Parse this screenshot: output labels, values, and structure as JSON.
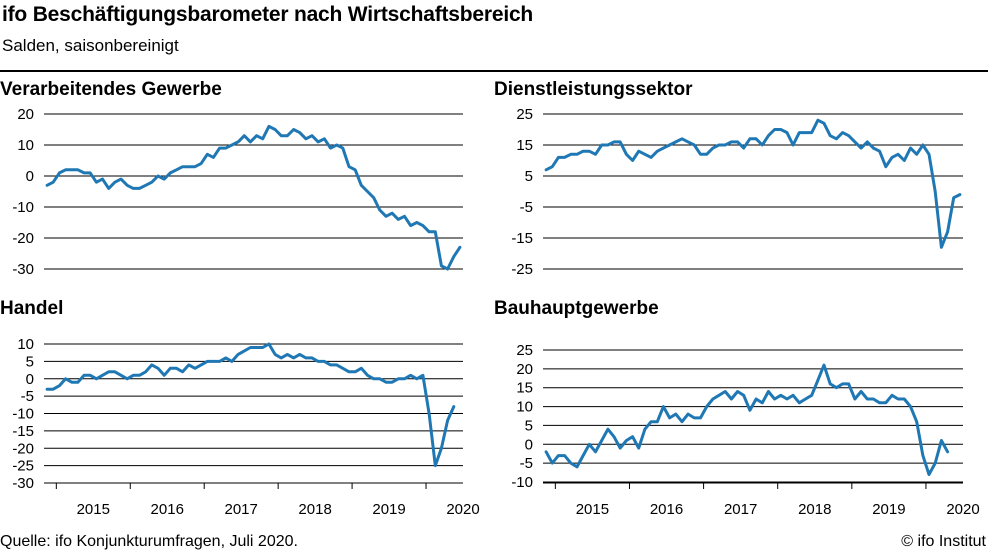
{
  "title": "ifo Beschäftigungsbarometer nach Wirtschaftsbereich",
  "subtitle": "Salden, saisonbereinigt",
  "source": "Quelle: ifo Konjunkturumfragen, Juli 2020.",
  "copyright": "© ifo Institut",
  "colors": {
    "line": "#1f78b4",
    "grid": "#000000"
  },
  "chart_data": [
    {
      "type": "line",
      "title": "Verarbeitendes Gewerbe",
      "x_labels": [
        "2015",
        "2016",
        "2017",
        "2018",
        "2019",
        "2020"
      ],
      "ylim": [
        -30,
        20
      ],
      "y_ticks": [
        20,
        10,
        0,
        -10,
        -20,
        -30
      ],
      "x_start": "2014-11",
      "series": [
        {
          "values": [
            -3,
            -2,
            1,
            2,
            2,
            2,
            1,
            1,
            -2,
            -1,
            -4,
            -2,
            -1,
            -3,
            -4,
            -4,
            -3,
            -2,
            0,
            -1,
            1,
            2,
            3,
            3,
            3,
            4,
            7,
            6,
            9,
            9,
            10,
            11,
            13,
            11,
            13,
            12,
            16,
            15,
            13,
            13,
            15,
            14,
            12,
            13,
            11,
            12,
            9,
            10,
            9,
            3,
            2,
            -3,
            -5,
            -7,
            -11,
            -13,
            -12,
            -14,
            -13,
            -16,
            -15,
            -16,
            -18,
            -18,
            -29,
            -30,
            -26,
            -23
          ]
        }
      ]
    },
    {
      "type": "line",
      "title": "Dienstleistungssektor",
      "x_labels": [
        "2015",
        "2016",
        "2017",
        "2018",
        "2019",
        "2020"
      ],
      "ylim": [
        -25,
        25
      ],
      "y_ticks": [
        25,
        15,
        5,
        -5,
        -15,
        -25
      ],
      "x_start": "2014-11",
      "series": [
        {
          "values": [
            7,
            8,
            11,
            11,
            12,
            12,
            13,
            13,
            12,
            15,
            15,
            16,
            16,
            12,
            10,
            13,
            12,
            11,
            13,
            14,
            15,
            16,
            17,
            16,
            15,
            12,
            12,
            14,
            15,
            15,
            16,
            16,
            14,
            17,
            17,
            15,
            18,
            20,
            20,
            19,
            15,
            19,
            19,
            19,
            23,
            22,
            18,
            17,
            19,
            18,
            16,
            14,
            16,
            14,
            13,
            8,
            11,
            12,
            10,
            14,
            12,
            15,
            12,
            0,
            -18,
            -13,
            -2,
            -1
          ]
        }
      ]
    },
    {
      "type": "line",
      "title": "Handel",
      "x_labels": [
        "2015",
        "2016",
        "2017",
        "2018",
        "2019",
        "2020"
      ],
      "ylim": [
        -30,
        10
      ],
      "y_ticks": [
        10,
        5,
        0,
        -5,
        -10,
        -15,
        -20,
        -25,
        -30
      ],
      "x_start": "2014-11",
      "series": [
        {
          "values": [
            -3,
            -3,
            -2,
            0,
            -1,
            -1,
            1,
            1,
            0,
            1,
            2,
            2,
            1,
            0,
            1,
            1,
            2,
            4,
            3,
            1,
            3,
            3,
            2,
            4,
            3,
            4,
            5,
            5,
            5,
            6,
            5,
            7,
            8,
            9,
            9,
            9,
            10,
            7,
            6,
            7,
            6,
            7,
            6,
            6,
            5,
            5,
            4,
            4,
            3,
            2,
            2,
            3,
            1,
            0,
            0,
            -1,
            -1,
            0,
            0,
            1,
            0,
            1,
            -10,
            -25,
            -20,
            -12,
            -8
          ]
        }
      ]
    },
    {
      "type": "line",
      "title": "Bauhauptgewerbe",
      "x_labels": [
        "2015",
        "2016",
        "2017",
        "2018",
        "2019",
        "2020"
      ],
      "ylim": [
        -10,
        25
      ],
      "y_ticks": [
        25,
        20,
        15,
        10,
        5,
        0,
        -5,
        -10
      ],
      "x_start": "2014-11",
      "series": [
        {
          "values": [
            -2,
            -5,
            -3,
            -3,
            -5,
            -6,
            -3,
            0,
            -2,
            1,
            4,
            2,
            -1,
            1,
            2,
            -1,
            4,
            6,
            6,
            10,
            7,
            8,
            6,
            8,
            7,
            7,
            10,
            12,
            13,
            14,
            12,
            14,
            13,
            9,
            12,
            11,
            14,
            12,
            13,
            12,
            13,
            11,
            12,
            13,
            17,
            21,
            16,
            15,
            16,
            16,
            12,
            14,
            12,
            12,
            11,
            11,
            13,
            12,
            12,
            10,
            6,
            -3,
            -8,
            -5,
            1,
            -2
          ]
        }
      ]
    }
  ]
}
